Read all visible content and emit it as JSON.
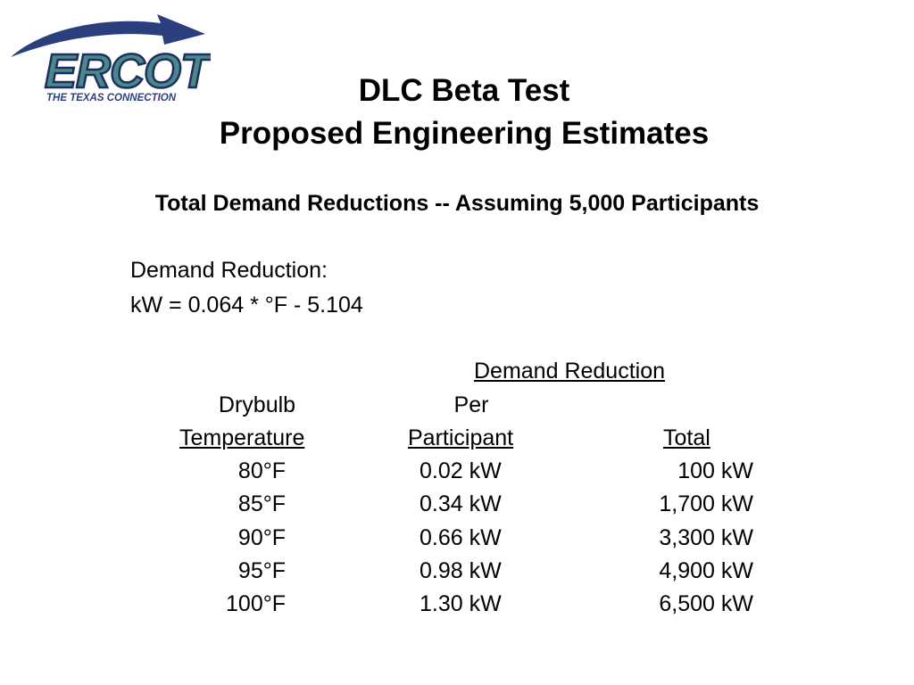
{
  "logo": {
    "brand": "ERCOT",
    "tagline": "THE TEXAS CONNECTION",
    "colors": {
      "swoosh": "#2b3f7e",
      "letters": "#4a8a86",
      "outline": "#1f2f66"
    }
  },
  "title": {
    "line1": "DLC Beta Test",
    "line2": "Proposed Engineering Estimates"
  },
  "subtitle": "Total Demand Reductions -- Assuming 5,000 Participants",
  "formula": {
    "label": "Demand Reduction:",
    "equation": "kW = 0.064 * °F - 5.104"
  },
  "table": {
    "group_header": "Demand Reduction",
    "headers": {
      "temp_line1": "Drybulb",
      "temp_line2": "Temperature",
      "per_line1": "Per",
      "per_line2": "Participant",
      "total": "Total"
    },
    "rows": [
      {
        "temp": "80°F",
        "per_participant": "0.02 kW",
        "total": "100 kW"
      },
      {
        "temp": "85°F",
        "per_participant": "0.34 kW",
        "total": "1,700 kW"
      },
      {
        "temp": "90°F",
        "per_participant": "0.66 kW",
        "total": "3,300 kW"
      },
      {
        "temp": "95°F",
        "per_participant": "0.98 kW",
        "total": "4,900 kW"
      },
      {
        "temp": "100°F",
        "per_participant": "1.30 kW",
        "total": "6,500 kW"
      }
    ]
  }
}
